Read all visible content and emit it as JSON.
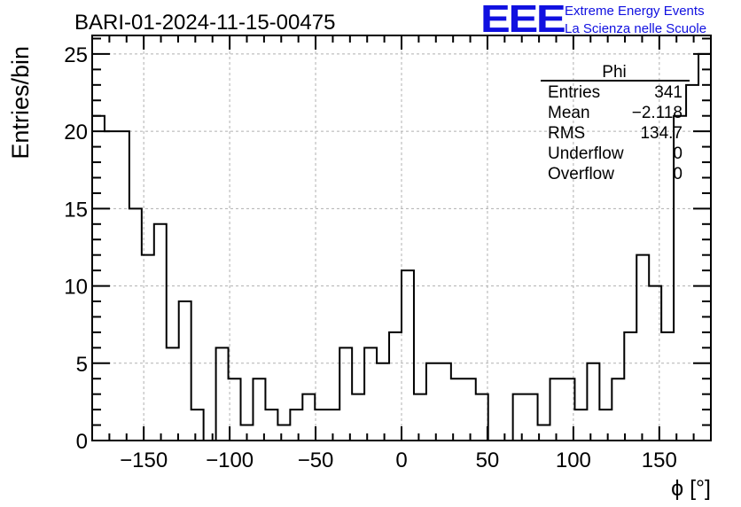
{
  "chart_data": {
    "type": "bar",
    "style": "step-histogram",
    "title": "BARI-01-2024-11-15-00475",
    "xlabel": "ϕ [°]",
    "ylabel": "Entries/bin",
    "xlim": [
      -180,
      180
    ],
    "ylim": [
      0,
      26.2
    ],
    "bin_width": 7.2,
    "grid": true,
    "xticks": [
      "-150",
      "-100",
      "-50",
      "0",
      "50",
      "100",
      "150"
    ],
    "xtick_values": [
      -150,
      -100,
      -50,
      0,
      50,
      100,
      150
    ],
    "yticks": [
      "0",
      "5",
      "10",
      "15",
      "20",
      "25"
    ],
    "ytick_values": [
      0,
      5,
      10,
      15,
      20,
      25
    ],
    "series": [
      {
        "values": [
          21,
          20,
          20,
          15,
          12,
          14,
          6,
          9,
          2,
          0,
          6,
          4,
          1,
          4,
          2,
          1,
          2,
          3,
          2,
          2,
          6,
          3,
          6,
          5,
          7,
          11,
          3,
          5,
          5,
          4,
          4,
          3,
          0,
          0,
          3,
          3,
          1,
          4,
          4,
          2,
          5,
          2,
          4,
          7,
          12,
          10,
          7,
          21,
          23,
          25
        ]
      }
    ]
  },
  "stats_box": {
    "title": "Phi",
    "rows": [
      {
        "label": "Entries",
        "value": "341"
      },
      {
        "label": "Mean",
        "value": "−2.118"
      },
      {
        "label": "RMS",
        "value": "134.7"
      },
      {
        "label": "Underflow",
        "value": "0"
      },
      {
        "label": "Overflow",
        "value": "0"
      }
    ]
  },
  "logo": {
    "mark": "EEE",
    "line1": "Extreme Energy Events",
    "line2": "La Scienza nelle Scuole",
    "color": "#1010e0"
  },
  "colors": {
    "line": "#000000",
    "grid": "#b0b0b0"
  }
}
